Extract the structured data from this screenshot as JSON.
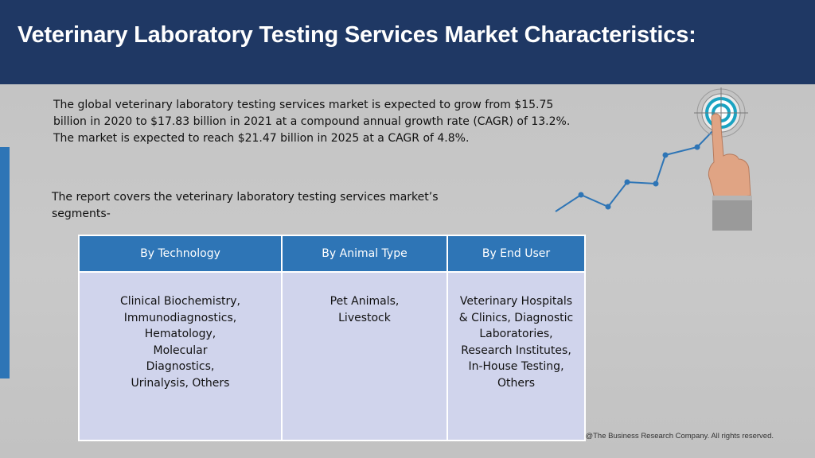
{
  "header": {
    "title": "Veterinary Laboratory Testing Services Market Characteristics:"
  },
  "intro_text": "The global veterinary laboratory testing services market is expected to grow from $15.75 billion in 2020 to $17.83 billion in 2021 at a compound annual growth rate (CAGR) of 13.2%. The market is expected to reach $21.47 billion in 2025 at a CAGR of 4.8%.",
  "segments_text": "The report covers the veterinary laboratory testing services market’s segments-",
  "table": {
    "headers": [
      "By Technology",
      "By Animal Type",
      "By End User"
    ],
    "cells": [
      "Clinical Biochemistry,\nImmunodiagnostics,\nHematology,\nMolecular\nDiagnostics,\nUrinalysis, Others",
      "Pet Animals,\nLivestock",
      "Veterinary Hospitals\n& Clinics, Diagnostic\nLaboratories,\nResearch Institutes,\nIn-House Testing,\nOthers"
    ]
  },
  "footer": "@The Business Research Company. All rights reserved.",
  "colors": {
    "header_bg": "#1f3864",
    "table_header_bg": "#2e75b6",
    "table_cell_bg": "#d0d4ec",
    "accent": "#2e75b6"
  },
  "icons": [
    "hand-pointing-target-illustration",
    "growth-line-icon"
  ]
}
